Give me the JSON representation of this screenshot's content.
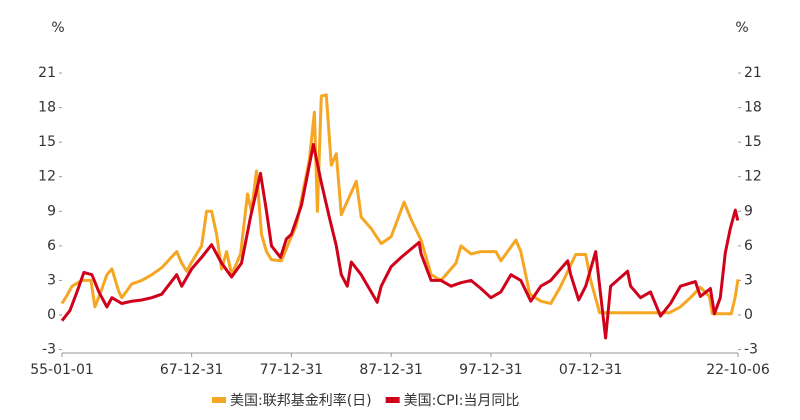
{
  "chart_data": {
    "type": "line",
    "ylabel": "%",
    "y2label": "%",
    "xlim": [
      1955,
      2022.77
    ],
    "xticks": [
      {
        "value": 1955,
        "label": "55-01-01"
      },
      {
        "value": 1968,
        "label": "67-12-31"
      },
      {
        "value": 1978,
        "label": "77-12-31"
      },
      {
        "value": 1988,
        "label": "87-12-31"
      },
      {
        "value": 1998,
        "label": "97-12-31"
      },
      {
        "value": 2008,
        "label": "07-12-31"
      },
      {
        "value": 2022.77,
        "label": "22-10-06"
      }
    ],
    "ylim": [
      -3.3,
      23
    ],
    "yticks": [
      -3,
      0,
      3,
      6,
      9,
      12,
      15,
      18,
      21
    ],
    "y2lim": [
      -3.3,
      23
    ],
    "y2ticks": [
      -3,
      0,
      3,
      6,
      9,
      12,
      15,
      18,
      21
    ],
    "series": [
      {
        "name": "美国:联邦基金利率(日)",
        "color": "#f5a623",
        "x": [
          1955,
          1955.5,
          1956,
          1957,
          1957.9,
          1958.3,
          1958.8,
          1959.5,
          1960,
          1960.7,
          1961,
          1962,
          1963,
          1964,
          1965,
          1966.5,
          1967,
          1967.5,
          1968,
          1969,
          1969.5,
          1970,
          1970.5,
          1971,
          1971.5,
          1972,
          1972.9,
          1973.6,
          1974,
          1974.5,
          1975,
          1975.5,
          1976,
          1977,
          1977.9,
          1978.5,
          1979,
          1979.8,
          1980.3,
          1980.6,
          1981,
          1981.5,
          1982,
          1982.5,
          1983,
          1984.5,
          1985,
          1986,
          1987,
          1988,
          1989.3,
          1990,
          1991,
          1992,
          1993,
          1994.5,
          1995,
          1996,
          1997,
          1998.5,
          1999,
          2000.5,
          2001,
          2001.9,
          2003,
          2004,
          2005,
          2006.5,
          2007.5,
          2008,
          2008.9,
          2015.9,
          2017,
          2018,
          2019,
          2019.9,
          2020.2,
          2022.1,
          2022.5,
          2022.77
        ],
        "values": [
          1.0,
          1.7,
          2.5,
          3.0,
          3.0,
          0.7,
          1.8,
          3.5,
          4.0,
          2.0,
          1.5,
          2.7,
          3.0,
          3.5,
          4.1,
          5.5,
          4.5,
          3.8,
          4.6,
          6.0,
          9.0,
          9.0,
          7.0,
          4.0,
          5.5,
          3.5,
          5.3,
          10.5,
          9.0,
          12.5,
          7.0,
          5.5,
          4.8,
          4.7,
          6.6,
          7.8,
          10,
          13.5,
          17.6,
          9.0,
          19,
          19.1,
          13,
          14,
          8.7,
          11.6,
          8.5,
          7.5,
          6.2,
          6.8,
          9.8,
          8.3,
          6.5,
          3.5,
          3.0,
          4.5,
          6.0,
          5.3,
          5.5,
          5.5,
          4.7,
          6.5,
          5.5,
          1.8,
          1.2,
          1.0,
          2.5,
          5.25,
          5.25,
          3.0,
          0.2,
          0.2,
          0.7,
          1.5,
          2.4,
          1.6,
          0.1,
          0.1,
          1.6,
          3.1
        ]
      },
      {
        "name": "美国:CPI:当月同比",
        "color": "#d0021b",
        "x": [
          1955,
          1955.8,
          1956.5,
          1957.2,
          1958,
          1958.7,
          1959.5,
          1960,
          1961,
          1962,
          1963,
          1964,
          1965,
          1966.5,
          1967,
          1968,
          1969,
          1970,
          1971,
          1972,
          1973,
          1973.9,
          1974.9,
          1975.5,
          1976,
          1976.9,
          1977.5,
          1978,
          1979,
          1980.2,
          1981,
          1981.8,
          1982.5,
          1983,
          1983.6,
          1984,
          1985,
          1986.6,
          1987,
          1988,
          1989,
          1990.8,
          1991,
          1992,
          1993,
          1994,
          1995,
          1996,
          1997,
          1998,
          1999,
          2000,
          2001,
          2002,
          2003,
          2004,
          2005.7,
          2006,
          2006.8,
          2007.5,
          2008.5,
          2009.5,
          2010,
          2011.7,
          2012,
          2013,
          2014,
          2015,
          2016,
          2017,
          2018.5,
          2019,
          2020,
          2020.4,
          2021,
          2021.5,
          2022,
          2022.5,
          2022.75
        ],
        "values": [
          -0.5,
          0.4,
          2.0,
          3.7,
          3.5,
          2.0,
          0.7,
          1.5,
          1.0,
          1.2,
          1.3,
          1.5,
          1.8,
          3.5,
          2.5,
          4.0,
          5.0,
          6.1,
          4.5,
          3.3,
          4.5,
          8.5,
          12.3,
          9.0,
          6.0,
          5.0,
          6.6,
          7.0,
          9.5,
          14.8,
          11.5,
          8.5,
          6.0,
          3.5,
          2.5,
          4.6,
          3.5,
          1.1,
          2.5,
          4.2,
          5.0,
          6.3,
          5.3,
          3.0,
          3.0,
          2.5,
          2.8,
          3.0,
          2.3,
          1.5,
          2.0,
          3.5,
          3.0,
          1.2,
          2.5,
          3.0,
          4.7,
          3.5,
          1.3,
          2.5,
          5.5,
          -2.0,
          2.5,
          3.8,
          2.5,
          1.5,
          2.0,
          -0.1,
          1.0,
          2.5,
          2.9,
          1.6,
          2.3,
          0.1,
          1.5,
          5.4,
          7.5,
          9.1,
          8.2
        ]
      }
    ]
  }
}
